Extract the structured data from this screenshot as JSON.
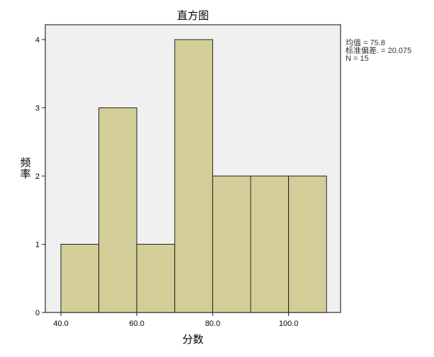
{
  "chart_data": {
    "type": "bar",
    "title": "直方图",
    "xlabel": "分数",
    "ylabel": "频率",
    "bins": [
      [
        40,
        50
      ],
      [
        50,
        60
      ],
      [
        60,
        70
      ],
      [
        70,
        80
      ],
      [
        80,
        90
      ],
      [
        90,
        100
      ],
      [
        100,
        110
      ]
    ],
    "values": [
      1,
      3,
      1,
      4,
      2,
      2,
      2
    ],
    "xticks": [
      "40.0",
      "60.0",
      "80.0",
      "100.0"
    ],
    "yticks": [
      "0",
      "1",
      "2",
      "3",
      "4"
    ],
    "xlim": [
      36,
      114.5
    ],
    "ylim": [
      0,
      4.2
    ],
    "grid": false,
    "bar_color": "#d3ce98",
    "plot_background": "#f0f0f0",
    "stats": {
      "mean": "均值 = 75.8",
      "std": "标准偏差. = 20.075",
      "n": "N = 15"
    }
  }
}
